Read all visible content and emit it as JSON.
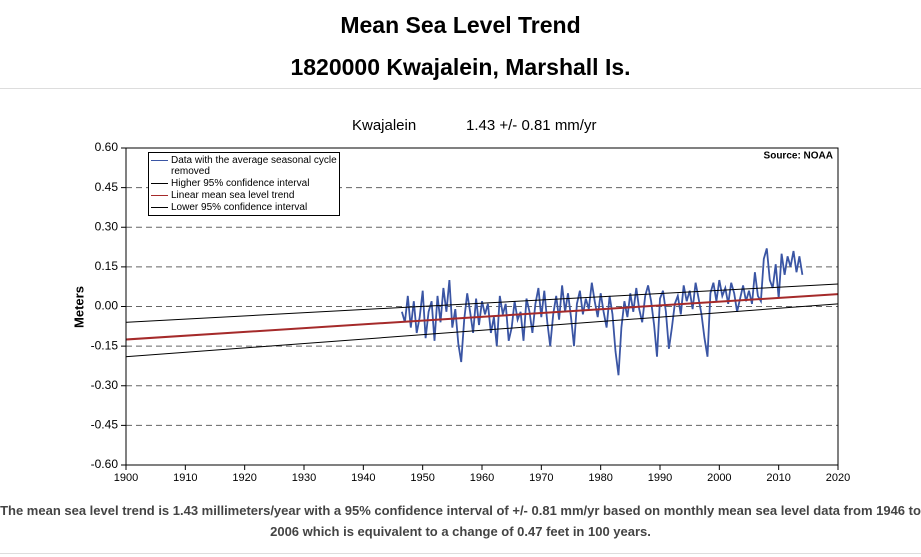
{
  "header": {
    "title": "Mean Sea Level Trend",
    "subtitle": "1820000 Kwajalein, Marshall Is."
  },
  "footer": "The mean sea level trend is 1.43 millimeters/year with a 95% confidence interval of +/- 0.81 mm/yr based on monthly mean sea level data from 1946 to 2006 which is equivalent to a change of 0.47 feet in 100 years.",
  "chart_data": {
    "type": "line",
    "title": "Kwajalein",
    "subtitle": "1.43 +/- 0.81 mm/yr",
    "annotation": "Source: NOAA",
    "ylabel": "Meters",
    "xlim": [
      1900,
      2020
    ],
    "xticks": [
      1900,
      1910,
      1920,
      1930,
      1940,
      1950,
      1960,
      1970,
      1980,
      1990,
      2000,
      2010,
      2020
    ],
    "ylim": [
      -0.6,
      0.6
    ],
    "yticks": [
      {
        "value": -0.6,
        "label": "-0.60"
      },
      {
        "value": -0.45,
        "label": "-0.45"
      },
      {
        "value": -0.3,
        "label": "-0.30"
      },
      {
        "value": -0.15,
        "label": "-0.15"
      },
      {
        "value": 0,
        "label": "0.00"
      },
      {
        "value": 0.15,
        "label": "0.15"
      },
      {
        "value": 0.3,
        "label": "0.30"
      },
      {
        "value": 0.45,
        "label": "0.45"
      },
      {
        "value": 0.6,
        "label": "0.60"
      }
    ],
    "grid": true,
    "legend": "upper left",
    "series": [
      {
        "name": "Data with the average seasonal cycle removed",
        "color": "#3a55a4",
        "x": [
          1946.5,
          1947,
          1947.5,
          1948,
          1948.5,
          1949,
          1949.5,
          1950,
          1950.5,
          1951,
          1951.5,
          1952,
          1952.5,
          1953,
          1953.5,
          1954,
          1954.5,
          1955,
          1955.5,
          1956,
          1956.5,
          1957,
          1957.5,
          1958,
          1958.5,
          1959,
          1959.5,
          1960,
          1960.5,
          1961,
          1961.5,
          1962,
          1962.5,
          1963,
          1963.5,
          1964,
          1964.5,
          1965,
          1965.5,
          1966,
          1966.5,
          1967,
          1967.5,
          1968,
          1968.5,
          1969,
          1969.5,
          1970,
          1970.5,
          1971,
          1971.5,
          1972,
          1972.5,
          1973,
          1973.5,
          1974,
          1974.5,
          1975,
          1975.5,
          1976,
          1976.5,
          1977,
          1977.5,
          1978,
          1978.5,
          1979,
          1979.5,
          1980,
          1980.5,
          1981,
          1981.5,
          1982,
          1982.5,
          1983,
          1983.5,
          1984,
          1984.5,
          1985,
          1985.5,
          1986,
          1986.5,
          1987,
          1987.5,
          1988,
          1988.5,
          1989,
          1989.5,
          1990,
          1990.5,
          1991,
          1991.5,
          1992,
          1992.5,
          1993,
          1993.5,
          1994,
          1994.5,
          1995,
          1995.5,
          1996,
          1996.5,
          1997,
          1997.5,
          1998,
          1998.5,
          1999,
          1999.5,
          2000,
          2000.5,
          2001,
          2001.5,
          2002,
          2002.5,
          2003,
          2003.5,
          2004,
          2004.5,
          2005,
          2005.5,
          2006,
          2006.5,
          2007,
          2007.5,
          2008,
          2008.5,
          2009,
          2009.5,
          2010,
          2010.5,
          2011,
          2011.5,
          2012,
          2012.5,
          2013,
          2013.5,
          2014
        ],
        "values": [
          -0.02,
          -0.06,
          0.04,
          -0.08,
          0.02,
          -0.1,
          -0.04,
          0.06,
          -0.12,
          -0.02,
          0.02,
          -0.13,
          0.04,
          -0.06,
          0.07,
          -0.02,
          0.1,
          -0.08,
          -0.01,
          -0.14,
          -0.21,
          -0.05,
          0.05,
          -0.02,
          -0.1,
          0.03,
          -0.07,
          0.02,
          -0.03,
          0.01,
          -0.1,
          -0.04,
          -0.15,
          0.04,
          -0.03,
          0.01,
          -0.13,
          -0.08,
          0.02,
          -0.05,
          -0.02,
          -0.13,
          0.03,
          -0.02,
          -0.1,
          0.01,
          0.07,
          -0.04,
          0.06,
          -0.06,
          -0.15,
          -0.03,
          0.04,
          -0.05,
          0.08,
          -0.02,
          0.05,
          -0.04,
          -0.15,
          0.01,
          0.06,
          -0.03,
          0.03,
          -0.01,
          0.09,
          0.02,
          -0.04,
          0.05,
          -0.02,
          -0.08,
          0.04,
          -0.03,
          -0.17,
          -0.26,
          -0.08,
          0.02,
          -0.04,
          0.05,
          -0.02,
          0.07,
          -0.01,
          -0.06,
          0.04,
          0.08,
          0.02,
          -0.07,
          -0.19,
          0.03,
          0.06,
          -0.02,
          -0.16,
          -0.08,
          0.01,
          0.04,
          -0.03,
          0.08,
          0.02,
          0.06,
          -0.01,
          0.09,
          0.03,
          -0.03,
          -0.12,
          -0.19,
          0.05,
          0.09,
          0.02,
          0.1,
          0.04,
          0.07,
          0.01,
          0.09,
          0.05,
          -0.02,
          0.03,
          0.08,
          0.02,
          0.06,
          0.01,
          0.13,
          0.04,
          0.02,
          0.18,
          0.22,
          0.1,
          0.07,
          0.16,
          0.03,
          0.2,
          0.12,
          0.19,
          0.15,
          0.21,
          0.13,
          0.19,
          0.12
        ]
      },
      {
        "name": "Higher 95% confidence interval",
        "color": "#000000",
        "x": [
          1900,
          2020
        ],
        "values": [
          -0.06,
          0.085
        ]
      },
      {
        "name": "Linear mean sea level trend",
        "color": "#a52a2a",
        "x": [
          1900,
          2020
        ],
        "values": [
          -0.125,
          0.047
        ]
      },
      {
        "name": "Lower 95% confidence interval",
        "color": "#000000",
        "x": [
          1900,
          2020
        ],
        "values": [
          -0.19,
          0.01
        ]
      }
    ]
  }
}
